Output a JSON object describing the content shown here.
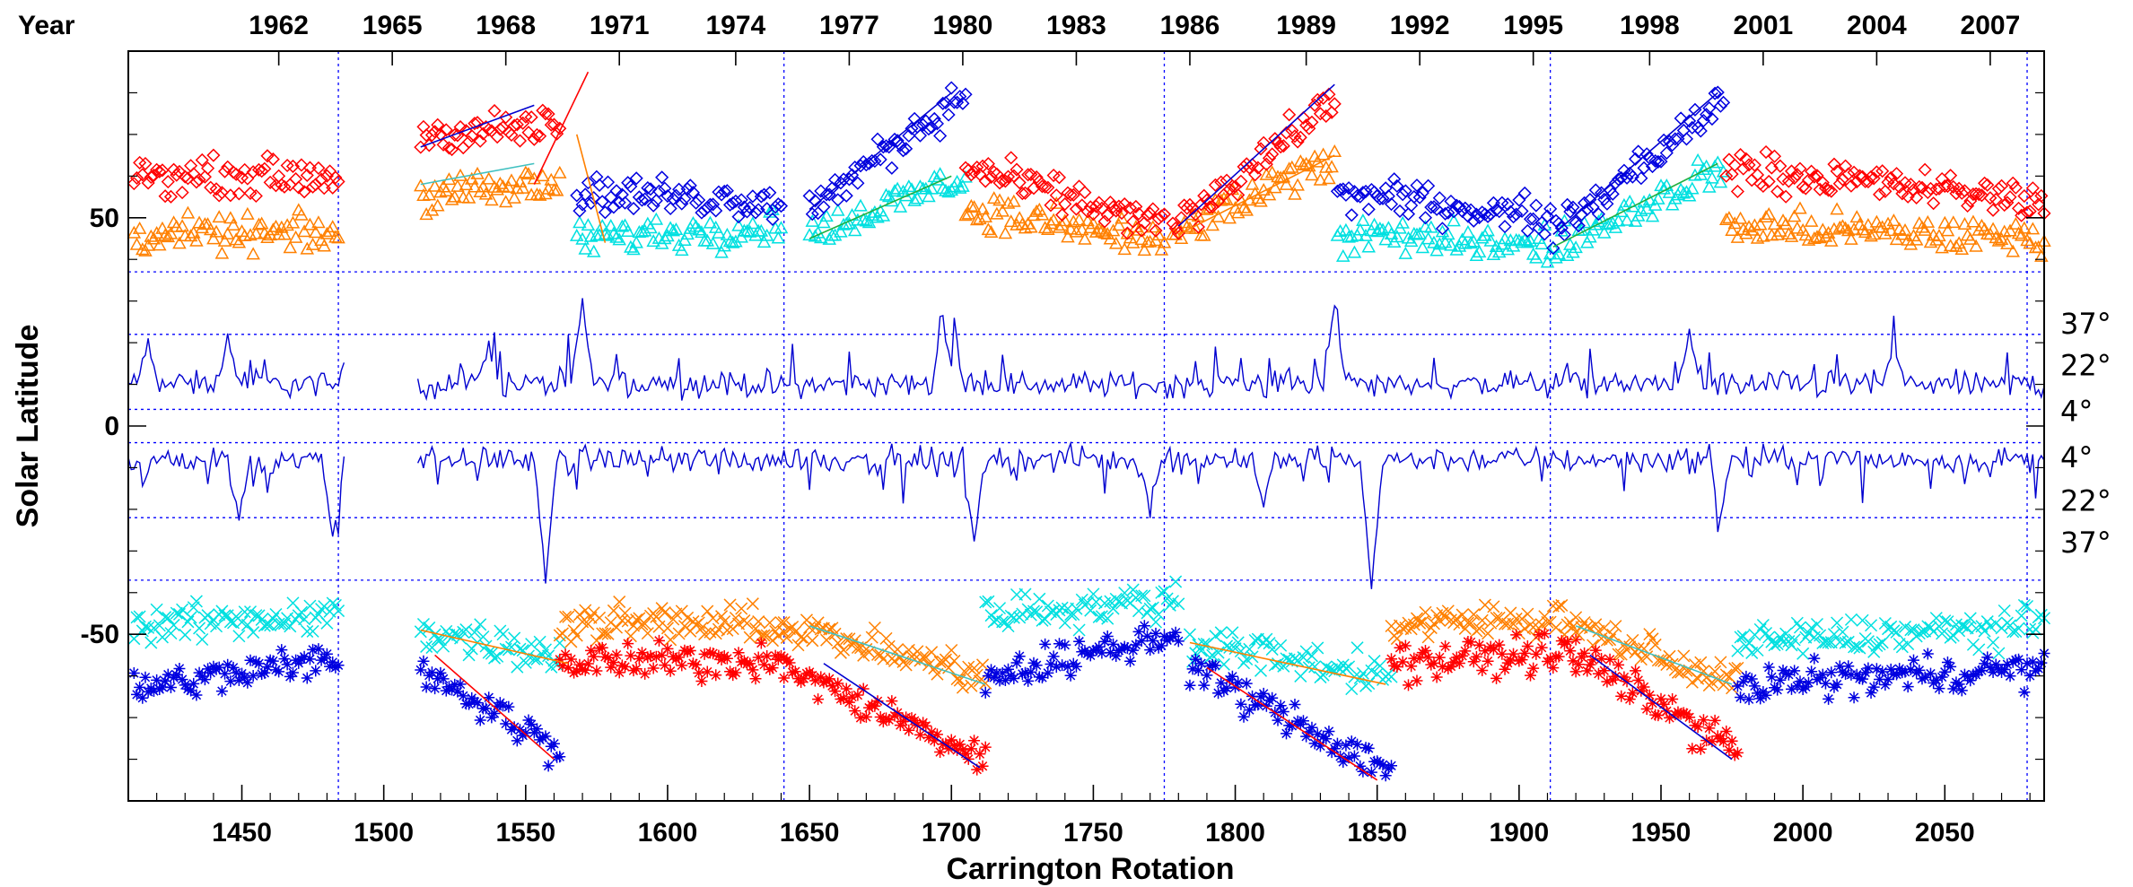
{
  "chart_data": {
    "type": "scatter",
    "xlabel": "Carrington Rotation",
    "ylabel": "Solar Latitude",
    "year_label": "Year",
    "xlim": [
      1410,
      2085
    ],
    "ylim": [
      -90,
      90
    ],
    "x_ticks": [
      1450,
      1500,
      1550,
      1600,
      1650,
      1700,
      1750,
      1800,
      1850,
      1900,
      1950,
      2000,
      2050
    ],
    "y_ticks": [
      50,
      0,
      -50
    ],
    "years": [
      {
        "label": "1962",
        "cr": 1463
      },
      {
        "label": "1965",
        "cr": 1503
      },
      {
        "label": "1968",
        "cr": 1543
      },
      {
        "label": "1971",
        "cr": 1583
      },
      {
        "label": "1974",
        "cr": 1624
      },
      {
        "label": "1977",
        "cr": 1664
      },
      {
        "label": "1980",
        "cr": 1704
      },
      {
        "label": "1983",
        "cr": 1744
      },
      {
        "label": "1986",
        "cr": 1784
      },
      {
        "label": "1989",
        "cr": 1825
      },
      {
        "label": "1992",
        "cr": 1865
      },
      {
        "label": "1995",
        "cr": 1905
      },
      {
        "label": "1998",
        "cr": 1946
      },
      {
        "label": "2001",
        "cr": 1986
      },
      {
        "label": "2004",
        "cr": 2026
      },
      {
        "label": "2007",
        "cr": 2066
      }
    ],
    "reference_latitudes": [
      37,
      22,
      4,
      -4,
      -22,
      -37
    ],
    "right_labels": [
      "37°",
      "22°",
      "4°",
      "4°",
      "22°",
      "37°"
    ],
    "cycle_boundaries_cr": [
      1484,
      1641,
      1775,
      1911,
      2079
    ],
    "data_gap_cr": [
      1486,
      1512
    ],
    "series_colors": {
      "red": "#ff0000",
      "orange": "#ff8000",
      "cyan": "#00e0e0",
      "blue": "#0000e0",
      "line": "#0000d0",
      "grid": "#0000ff"
    },
    "north_width_line": {
      "color": "#0000d0",
      "baseline": 10,
      "spikes": [
        {
          "cr": 1570,
          "value": 29
        },
        {
          "cr": 1700,
          "value": 31
        },
        {
          "cr": 1835,
          "value": 29
        },
        {
          "cr": 1697,
          "value": 25
        },
        {
          "cr": 1417,
          "value": 20
        },
        {
          "cr": 1445,
          "value": 21
        },
        {
          "cr": 1960,
          "value": 22
        },
        {
          "cr": 1537,
          "value": 19
        },
        {
          "cr": 2032,
          "value": 19
        }
      ]
    },
    "south_width_line": {
      "color": "#0000d0",
      "baseline": -8,
      "spikes": [
        {
          "cr": 1557,
          "value": -37
        },
        {
          "cr": 1848,
          "value": -39
        },
        {
          "cr": 1482,
          "value": -27
        },
        {
          "cr": 1708,
          "value": -27
        },
        {
          "cr": 1971,
          "value": -21
        },
        {
          "cr": 1449,
          "value": -23
        },
        {
          "cr": 1770,
          "value": -19
        },
        {
          "cr": 1810,
          "value": -19
        }
      ]
    },
    "north_markers": {
      "red_symbol": "diamond",
      "orange_symbol": "triangle",
      "cyan_symbol": "triangle",
      "blue_symbol": "diamond",
      "segments": [
        {
          "cr": [
            1412,
            1484
          ],
          "red": [
            60,
            60
          ],
          "orange": [
            46,
            46
          ]
        },
        {
          "cr": [
            1513,
            1562
          ],
          "red": [
            70,
            72
          ],
          "orange": [
            55,
            58
          ]
        },
        {
          "cr": [
            1568,
            1640
          ],
          "cyan": [
            45,
            48
          ],
          "blue": [
            56,
            54
          ]
        },
        {
          "cr": [
            1650,
            1705
          ],
          "blue": [
            52,
            80
          ],
          "cyan": [
            46,
            60
          ]
        },
        {
          "cr": [
            1705,
            1775
          ],
          "red": [
            62,
            48
          ],
          "orange": [
            52,
            44
          ]
        },
        {
          "cr": [
            1778,
            1835
          ],
          "red": [
            48,
            78
          ],
          "orange": [
            46,
            64
          ]
        },
        {
          "cr": [
            1836,
            1911
          ],
          "blue": [
            56,
            50
          ],
          "cyan": [
            46,
            43
          ]
        },
        {
          "cr": [
            1912,
            1972
          ],
          "blue": [
            46,
            78
          ],
          "cyan": [
            43,
            62
          ]
        },
        {
          "cr": [
            1973,
            2085
          ],
          "red": [
            62,
            54
          ],
          "orange": [
            48,
            45
          ]
        }
      ]
    },
    "south_markers": {
      "red_symbol": "asterisk",
      "orange_symbol": "cross",
      "cyan_symbol": "cross",
      "blue_symbol": "asterisk",
      "segments": [
        {
          "cr": [
            1412,
            1484
          ],
          "cyan": [
            -48,
            -45
          ],
          "blue": [
            -63,
            -56
          ]
        },
        {
          "cr": [
            1513,
            1562
          ],
          "cyan": [
            -49,
            -55
          ],
          "blue": [
            -58,
            -78
          ]
        },
        {
          "cr": [
            1562,
            1641
          ],
          "orange": [
            -47,
            -48
          ],
          "red": [
            -57,
            -56
          ]
        },
        {
          "cr": [
            1641,
            1712
          ],
          "red": [
            -58,
            -80
          ],
          "orange": [
            -48,
            -60
          ]
        },
        {
          "cr": [
            1712,
            1780
          ],
          "cyan": [
            -45,
            -42
          ],
          "blue": [
            -60,
            -50
          ]
        },
        {
          "cr": [
            1784,
            1855
          ],
          "blue": [
            -58,
            -83
          ],
          "cyan": [
            -52,
            -60
          ]
        },
        {
          "cr": [
            1855,
            1920
          ],
          "orange": [
            -48,
            -46
          ],
          "red": [
            -57,
            -54
          ]
        },
        {
          "cr": [
            1920,
            1977
          ],
          "red": [
            -55,
            -78
          ],
          "orange": [
            -48,
            -62
          ]
        },
        {
          "cr": [
            1977,
            2085
          ],
          "cyan": [
            -52,
            -48
          ],
          "blue": [
            -62,
            -58
          ]
        }
      ]
    },
    "trend_lines": [
      {
        "cr": [
          1513,
          1553
        ],
        "lat": [
          67,
          77
        ],
        "color": "#0000d0"
      },
      {
        "cr": [
          1513,
          1553
        ],
        "lat": [
          58,
          63
        ],
        "color": "#40c0c0"
      },
      {
        "cr": [
          1553,
          1572
        ],
        "lat": [
          58,
          85
        ],
        "color": "#ff0000"
      },
      {
        "cr": [
          1568,
          1578
        ],
        "lat": [
          70,
          44
        ],
        "color": "#ff8000"
      },
      {
        "cr": [
          1650,
          1700
        ],
        "lat": [
          52,
          80
        ],
        "color": "#0000d0"
      },
      {
        "cr": [
          1650,
          1700
        ],
        "lat": [
          45,
          60
        ],
        "color": "#20b040"
      },
      {
        "cr": [
          1780,
          1835
        ],
        "lat": [
          48,
          82
        ],
        "color": "#0000d0"
      },
      {
        "cr": [
          1780,
          1835
        ],
        "lat": [
          46,
          65
        ],
        "color": "#ff8000"
      },
      {
        "cr": [
          1912,
          1970
        ],
        "lat": [
          46,
          80
        ],
        "color": "#0000d0"
      },
      {
        "cr": [
          1912,
          1970
        ],
        "lat": [
          43,
          63
        ],
        "color": "#20b040"
      },
      {
        "cr": [
          1513,
          1565
        ],
        "lat": [
          -49,
          -57
        ],
        "color": "#ff8000"
      },
      {
        "cr": [
          1518,
          1560
        ],
        "lat": [
          -55,
          -80
        ],
        "color": "#ff0000"
      },
      {
        "cr": [
          1650,
          1712
        ],
        "lat": [
          -48,
          -62
        ],
        "color": "#40c0c0"
      },
      {
        "cr": [
          1655,
          1710
        ],
        "lat": [
          -57,
          -82
        ],
        "color": "#0000d0"
      },
      {
        "cr": [
          1784,
          1853
        ],
        "lat": [
          -52,
          -62
        ],
        "color": "#ff8000"
      },
      {
        "cr": [
          1790,
          1850
        ],
        "lat": [
          -58,
          -85
        ],
        "color": "#ff0000"
      },
      {
        "cr": [
          1920,
          1975
        ],
        "lat": [
          -48,
          -62
        ],
        "color": "#40c0c0"
      },
      {
        "cr": [
          1925,
          1975
        ],
        "lat": [
          -55,
          -80
        ],
        "color": "#0000d0"
      }
    ]
  }
}
